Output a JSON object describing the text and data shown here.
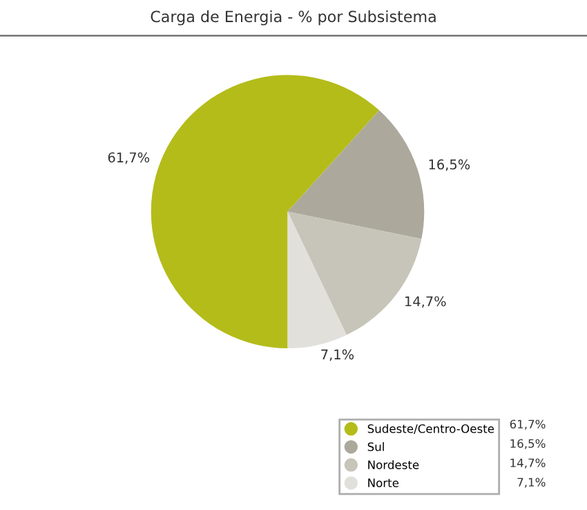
{
  "chart_data": {
    "type": "pie",
    "title": "Carga de Energia - % por Subsistema",
    "categories": [
      "Sudeste/Centro-Oeste",
      "Sul",
      "Nordeste",
      "Norte"
    ],
    "values": [
      61.7,
      16.5,
      14.7,
      7.1
    ],
    "value_labels": [
      "61,7%",
      "16,5%",
      "14,7%",
      "7,1%"
    ],
    "colors": [
      "#b4bc1a",
      "#aca99c",
      "#c7c5b9",
      "#e1e0db"
    ],
    "legend": "bottom right"
  }
}
